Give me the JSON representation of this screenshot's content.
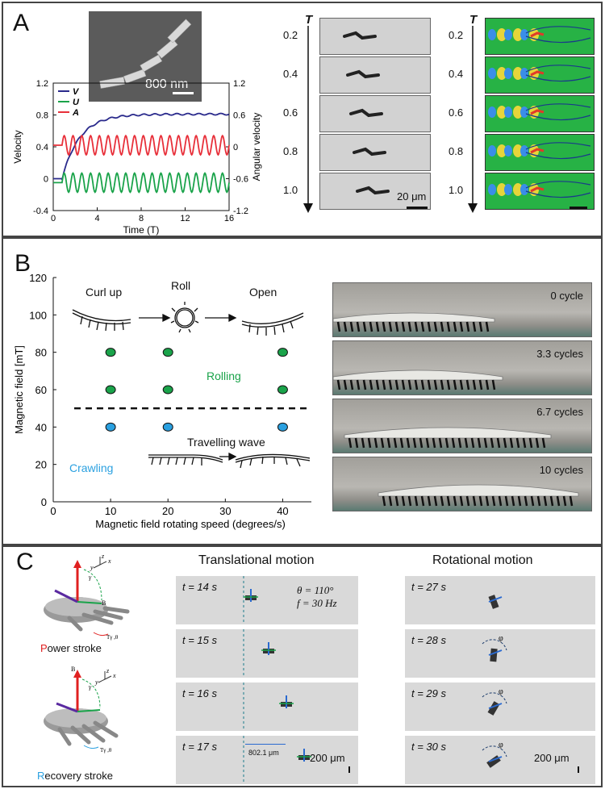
{
  "panelA": {
    "label": "A",
    "chart_data": {
      "type": "line",
      "xlabel": "Time (T)",
      "ylabel": "Velocity",
      "y2label": "Angular velocity",
      "xticks": [
        "0",
        "4",
        "8",
        "12",
        "16"
      ],
      "yticks": [
        "-0.4",
        "0",
        "0.4",
        "0.8",
        "1.2"
      ],
      "y2ticks": [
        "-1.2",
        "-0.6",
        "0",
        "0.6",
        "1.2"
      ],
      "xlim": [
        0,
        16
      ],
      "ylim": [
        -0.4,
        1.2
      ],
      "legend": [
        "V",
        "U",
        "A"
      ],
      "series": [
        {
          "name": "V",
          "color": "#2a2a8c",
          "kind": "rise",
          "start": 0.0,
          "end": 0.81
        },
        {
          "name": "U",
          "color": "#1aa34a",
          "kind": "osc",
          "center": -0.05,
          "amp": 0.12
        },
        {
          "name": "A",
          "color": "#e8303a",
          "kind": "osc",
          "center": 0.42,
          "amp": 0.12
        }
      ]
    },
    "sem_scale": "800 nm",
    "t_axis": "T",
    "times": [
      "0.2",
      "0.4",
      "0.6",
      "0.8",
      "1.0"
    ],
    "scale_mid": "20 μm"
  },
  "panelB": {
    "label": "B",
    "chart_data": {
      "type": "scatter",
      "xlabel": "Magnetic field rotating speed (degrees/s)",
      "ylabel": "Magnetic field [mT]",
      "xticks": [
        "0",
        "10",
        "20",
        "30",
        "40"
      ],
      "yticks": [
        "0",
        "20",
        "40",
        "60",
        "80",
        "100",
        "120"
      ],
      "xlim": [
        0,
        45
      ],
      "ylim": [
        0,
        120
      ],
      "threshold": 50,
      "series": [
        {
          "name": "Rolling",
          "color": "#1aa34a",
          "points": [
            [
              10,
              80
            ],
            [
              20,
              80
            ],
            [
              40,
              80
            ],
            [
              10,
              60
            ],
            [
              20,
              60
            ],
            [
              40,
              60
            ]
          ]
        },
        {
          "name": "Crawling",
          "color": "#2aa0e0",
          "points": [
            [
              10,
              40
            ],
            [
              20,
              40
            ],
            [
              40,
              40
            ]
          ]
        }
      ]
    },
    "rolling_label": "Rolling",
    "crawling_label": "Crawling",
    "steps": [
      "Curl up",
      "Roll",
      "Open"
    ],
    "wave_label": "Travelling wave",
    "cycles": [
      "0 cycle",
      "3.3 cycles",
      "6.7 cycles",
      "10 cycles"
    ]
  },
  "panelC": {
    "label": "C",
    "power_stroke": "ower stroke",
    "power_letter": "P",
    "recovery_stroke": "ecovery stroke",
    "recovery_letter": "R",
    "translational_title": "Translational motion",
    "rotational_title": "Rotational motion",
    "trans_times": [
      "t = 14 s",
      "t = 15 s",
      "t = 16 s",
      "t = 17 s"
    ],
    "rot_times": [
      "t = 27 s",
      "t = 28 s",
      "t = 29 s",
      "t = 30 s"
    ],
    "theta": "θ = 110°",
    "freq": "f = 30 Hz",
    "distance": "802.1 μm",
    "scale": "200 μm",
    "phi": "φ"
  }
}
